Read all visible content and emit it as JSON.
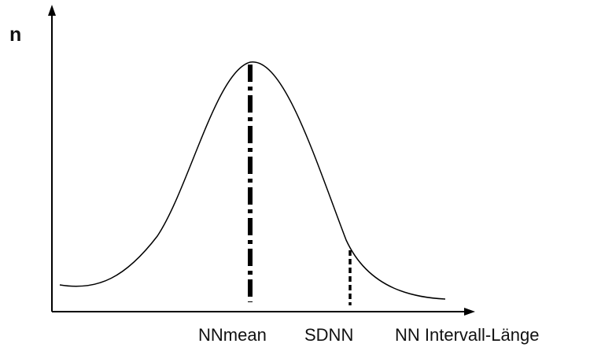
{
  "diagram": {
    "y_axis_label": "n",
    "x_axis_label": "NN Intervall-Länge",
    "mean_marker_label": "NNmean",
    "sd_marker_label": "SDNN",
    "curve_color": "#000000",
    "axis_color": "#000000"
  }
}
